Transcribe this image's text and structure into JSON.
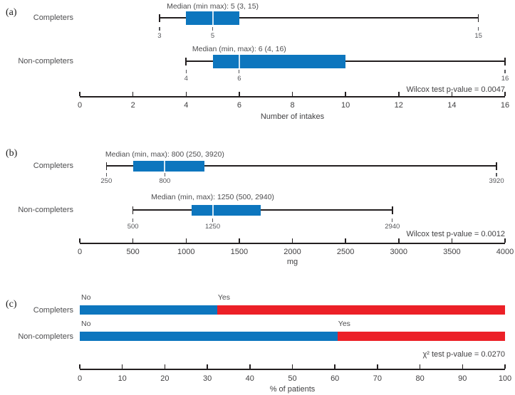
{
  "chart_data": [
    {
      "type": "boxplot",
      "panel_label": "(a)",
      "orientation": "horizontal",
      "categories": [
        "Completers",
        "Non-completers"
      ],
      "series": [
        {
          "name": "Completers",
          "annotation": "Median (min max): 5 (3, 15)",
          "min": 3,
          "q1": 4,
          "median": 5,
          "q3": 6,
          "max": 15,
          "marked_values": [
            3,
            5,
            15
          ]
        },
        {
          "name": "Non-completers",
          "annotation": "Median (min, max): 6 (4, 16)",
          "min": 4,
          "q1": 5,
          "median": 6,
          "q3": 10,
          "max": 16,
          "marked_values": [
            4,
            6,
            16
          ]
        }
      ],
      "xlabel": "Number of intakes",
      "xlim": [
        0,
        16
      ],
      "xticks": [
        0,
        2,
        4,
        6,
        8,
        10,
        12,
        14,
        16
      ],
      "stat_label": "Wilcox test p-value = 0.0047",
      "box_color": "#0d76be",
      "median_line_color": "#ffffff",
      "grid": false
    },
    {
      "type": "boxplot",
      "panel_label": "(b)",
      "orientation": "horizontal",
      "categories": [
        "Completers",
        "Non-completers"
      ],
      "series": [
        {
          "name": "Completers",
          "annotation": "Median (min, max): 800 (250, 3920)",
          "min": 250,
          "q1": 500,
          "median": 800,
          "q3": 1170,
          "max": 3920,
          "marked_values": [
            250,
            800,
            3920
          ]
        },
        {
          "name": "Non-completers",
          "annotation": "Median (min, max): 1250 (500, 2940)",
          "min": 500,
          "q1": 1050,
          "median": 1250,
          "q3": 1700,
          "max": 2940,
          "marked_values": [
            500,
            1250,
            2940
          ]
        }
      ],
      "xlabel": "mg",
      "xlim": [
        0,
        4000
      ],
      "xticks": [
        0,
        500,
        1000,
        1500,
        2000,
        2500,
        3000,
        3500,
        4000
      ],
      "stat_label": "Wilcox test p-value = 0.0012",
      "box_color": "#0d76be",
      "median_line_color": "#ffffff",
      "grid": false
    },
    {
      "type": "stacked_bar",
      "panel_label": "(c)",
      "orientation": "horizontal",
      "categories": [
        "Completers",
        "Non-completers"
      ],
      "segments": [
        "No",
        "Yes"
      ],
      "series": [
        {
          "name": "Completers",
          "values": [
            32.3,
            67.7
          ]
        },
        {
          "name": "Non-completers",
          "values": [
            60.6,
            39.4
          ]
        }
      ],
      "xlabel": "% of patients",
      "xlim": [
        0,
        100
      ],
      "xticks": [
        0,
        10,
        20,
        30,
        40,
        50,
        60,
        70,
        80,
        90,
        100
      ],
      "stat_label": "χ² test p-value = 0.0270",
      "colors": {
        "no": "#0d76be",
        "yes": "#ec2027"
      },
      "grid": false
    }
  ]
}
